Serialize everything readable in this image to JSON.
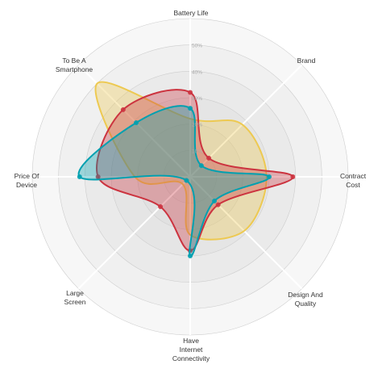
{
  "chart_data": {
    "type": "radar",
    "axes": [
      [
        "Battery Life"
      ],
      [
        "Brand"
      ],
      [
        "Contract",
        "Cost"
      ],
      [
        "Design And",
        "Quality"
      ],
      [
        "Have",
        "Internet",
        "Connectivity"
      ],
      [
        "Large",
        "Screen"
      ],
      [
        "Price Of",
        "Device"
      ],
      [
        "To Be A",
        "Smartphone"
      ]
    ],
    "range": [
      0,
      60
    ],
    "tick_labels": [
      "10%",
      "20%",
      "30%",
      "40%",
      "50%"
    ],
    "ticks": [
      10,
      20,
      30,
      40,
      50
    ],
    "series": [
      {
        "values": [
          22,
          28,
          29,
          29,
          22,
          4,
          21,
          50
        ],
        "color": "#EDC951",
        "show_points": false
      },
      {
        "values": [
          32,
          10,
          39,
          15,
          28,
          16,
          35,
          36
        ],
        "color": "#CC333F",
        "show_points": true
      },
      {
        "values": [
          26,
          6,
          30,
          13,
          30,
          2,
          42,
          29
        ],
        "color": "#00A0B0",
        "show_points": true
      }
    ]
  }
}
